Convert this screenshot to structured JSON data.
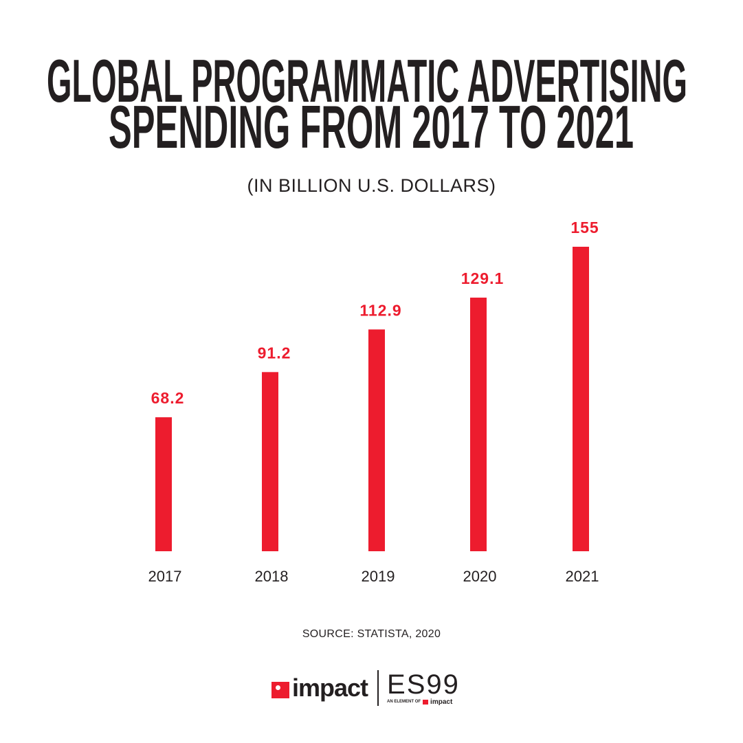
{
  "chart_data": {
    "type": "bar",
    "title_lines": [
      "GLOBAL PROGRAMMATIC ADVERTISING",
      "SPENDING FROM 2017 TO 2021"
    ],
    "subtitle": "(IN BILLION U.S. DOLLARS)",
    "categories": [
      "2017",
      "2018",
      "2019",
      "2020",
      "2021"
    ],
    "values": [
      68.2,
      91.2,
      112.9,
      129.1,
      155
    ],
    "value_labels": [
      "68.2",
      "91.2",
      "112.9",
      "129.1",
      "155"
    ],
    "bar_color": "#ed1c2e",
    "label_color": "#ed1c2e",
    "ylim": [
      0,
      155
    ],
    "grid": false,
    "axes_visible": false
  },
  "source": "SOURCE: STATISTA, 2020",
  "logo": {
    "brand": "impact",
    "secondary": "ES99",
    "tagline": "AN ELEMENT OF",
    "tagline_brand": "impact"
  }
}
